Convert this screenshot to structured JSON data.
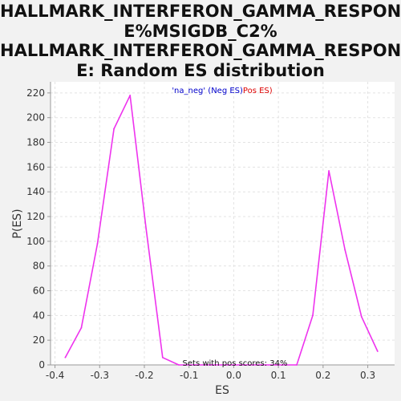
{
  "chart_data": {
    "type": "line",
    "title_lines": [
      "HALLMARK_INTERFERON_GAMMA_RESPONS",
      "E%MSIGDB_C2%",
      "HALLMARK_INTERFERON_GAMMA_RESPONS",
      "E: Random ES distribution"
    ],
    "xlabel": "ES",
    "ylabel": "P(ES)",
    "xlim": [
      -0.41,
      0.36
    ],
    "ylim": [
      0,
      229
    ],
    "xticks": [
      -0.4,
      -0.3,
      -0.2,
      -0.1,
      0.0,
      0.1,
      0.2,
      0.3
    ],
    "xtick_labels": [
      "-0.4",
      "-0.3",
      "-0.2",
      "-0.1",
      "0.0",
      "0.1",
      "0.2",
      "0.3"
    ],
    "yticks": [
      0,
      20,
      40,
      60,
      80,
      100,
      120,
      140,
      160,
      180,
      200,
      220
    ],
    "grid": true,
    "legend": {
      "placement": "top-center",
      "entries": [
        {
          "label": "'na_neg' (Neg ES)",
          "color": "#0000cc"
        },
        {
          "label": "Pos ES)",
          "color": "#dd0000"
        }
      ]
    },
    "annotation": "Sets with pos scores: 34%",
    "line_color": "#ee33ee",
    "series": [
      {
        "x": [
          -0.377,
          -0.341,
          -0.305,
          -0.268,
          -0.232,
          -0.196,
          -0.159,
          -0.123,
          -0.087,
          -0.05,
          -0.014,
          0.022,
          0.059,
          0.095,
          0.141,
          0.177,
          0.213,
          0.249,
          0.286,
          0.322
        ],
        "y": [
          6,
          30,
          98,
          191,
          218,
          110,
          6,
          0,
          0,
          0,
          0,
          0,
          0,
          0,
          0,
          40,
          157,
          93,
          39,
          11
        ]
      }
    ]
  }
}
